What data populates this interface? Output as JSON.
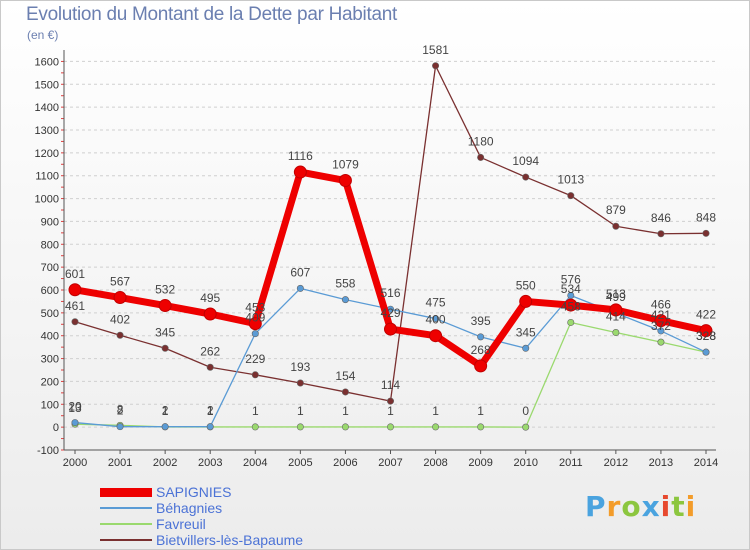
{
  "chart_data": {
    "type": "line",
    "title": "Evolution du Montant de la Dette par Habitant",
    "subtitle": "(en €)",
    "x": [
      "2000",
      "2001",
      "2002",
      "2003",
      "2004",
      "2005",
      "2006",
      "2007",
      "2008",
      "2009",
      "2010",
      "2011",
      "2012",
      "2013",
      "2014"
    ],
    "yticks": [
      -100,
      0,
      100,
      200,
      300,
      400,
      500,
      600,
      700,
      800,
      900,
      1000,
      1100,
      1200,
      1300,
      1400,
      1500,
      1600
    ],
    "ylim": [
      -100,
      1650
    ],
    "grid": "horizontal dashed",
    "legend": "bottom-left",
    "series": [
      {
        "name": "SAPIGNIES",
        "color": "#ee0000",
        "values": [
          601,
          567,
          532,
          495,
          453,
          1116,
          1079,
          429,
          400,
          268,
          550,
          534,
          513,
          466,
          422
        ],
        "labels": [
          "601",
          "567",
          "532",
          "495",
          "453",
          "1116",
          "1079",
          "429",
          "400",
          "268",
          "550",
          "534",
          "513",
          "466",
          "422"
        ]
      },
      {
        "name": "Béhagnies",
        "color": "#5a9bd5",
        "values": [
          20,
          2,
          2,
          2,
          409,
          607,
          558,
          516,
          475,
          395,
          345,
          576,
          499,
          421,
          328
        ],
        "labels": [
          "20",
          "2",
          "2",
          "2",
          "409",
          "607",
          "558",
          "516",
          "475",
          "395",
          "345",
          "576",
          "499",
          "421",
          "328"
        ]
      },
      {
        "name": "Favreuil",
        "color": "#9ad96e",
        "values": [
          13,
          8,
          1,
          1,
          1,
          1,
          1,
          1,
          1,
          1,
          0,
          458,
          414,
          372,
          328
        ],
        "labels": [
          "13",
          "8",
          "1",
          "1",
          "1",
          "1",
          "1",
          "1",
          "1",
          "1",
          "0",
          "458",
          "414",
          "372",
          "328"
        ]
      },
      {
        "name": "Bietvillers-lès-Bapaume",
        "color": "#7a3030",
        "values": [
          461,
          402,
          345,
          262,
          229,
          193,
          154,
          114,
          1581,
          1180,
          1094,
          1013,
          879,
          846,
          848
        ],
        "labels": [
          "461",
          "402",
          "345",
          "262",
          "229",
          "193",
          "154",
          "114",
          "1581",
          "1180",
          "1094",
          "1013",
          "879",
          "846",
          "848"
        ]
      }
    ]
  },
  "logo": {
    "p": "P",
    "r": "r",
    "o": "o",
    "x": "x",
    "i": "i",
    "t": "t",
    "i2": "i"
  }
}
